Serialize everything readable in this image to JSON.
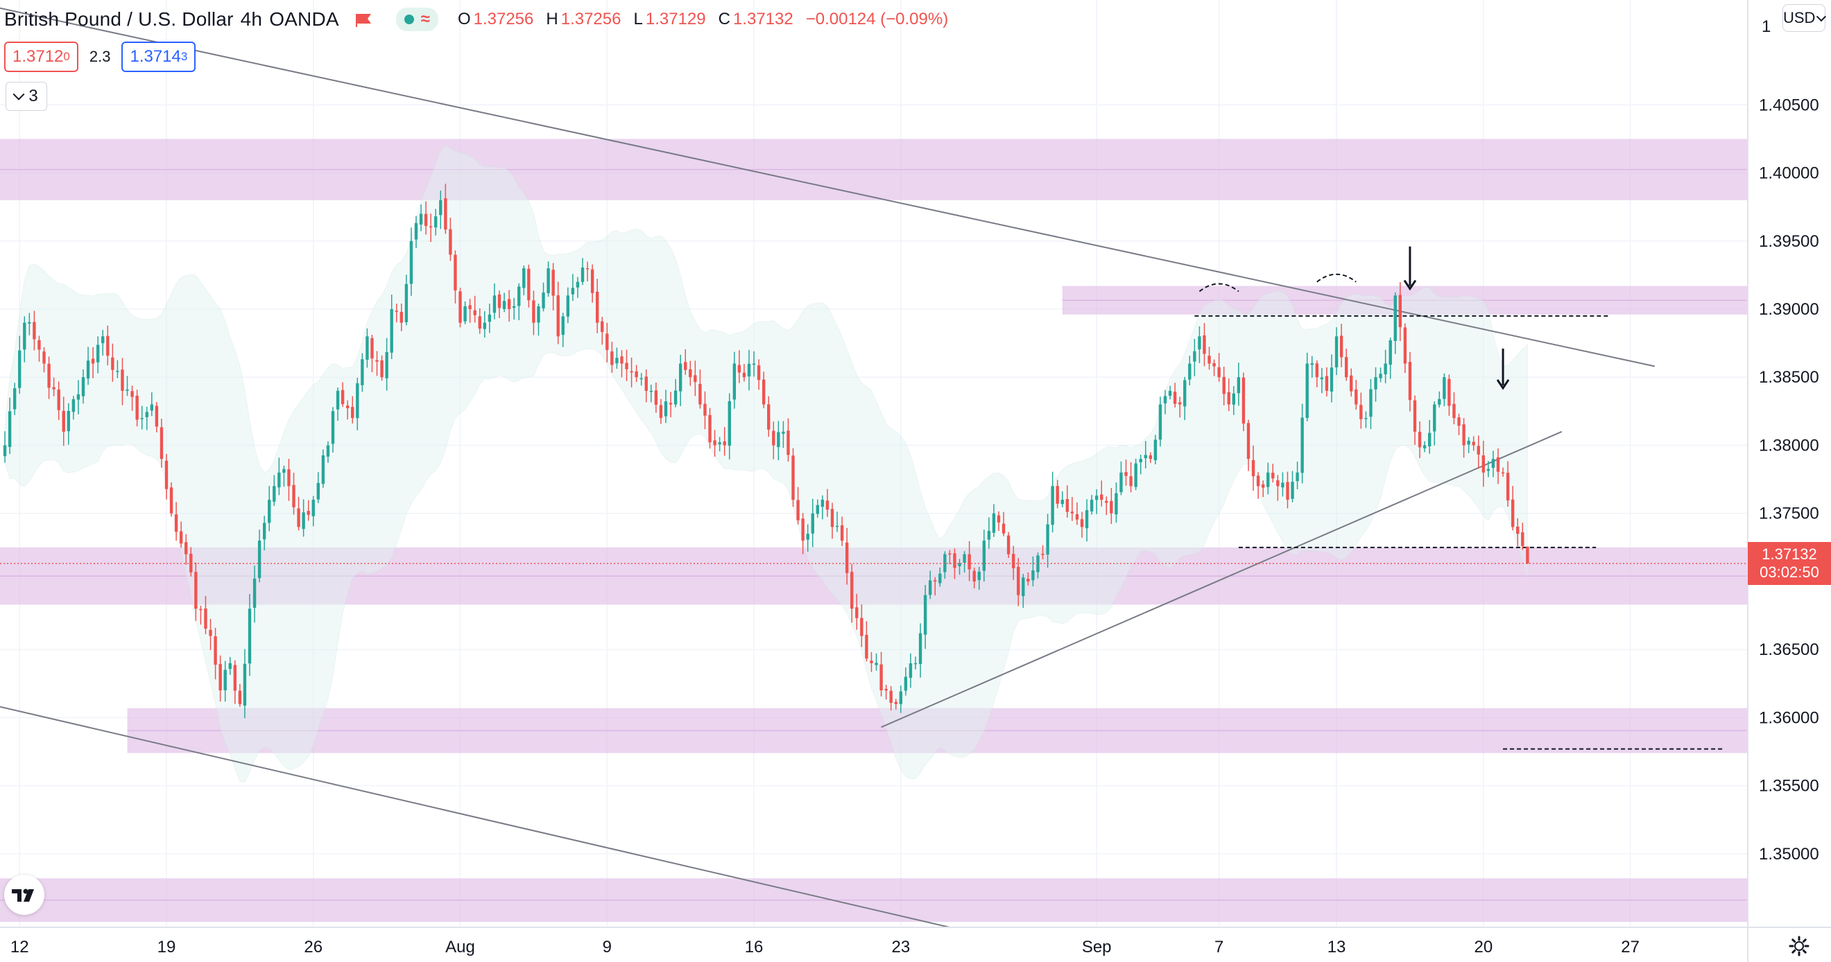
{
  "header": {
    "symbol": "British Pound / U.S. Dollar",
    "interval": "4h",
    "exchange": "OANDA",
    "ohlc": [
      {
        "key": "O",
        "value": "1.37256"
      },
      {
        "key": "H",
        "value": "1.37256"
      },
      {
        "key": "L",
        "value": "1.37129"
      },
      {
        "key": "C",
        "value": "1.37132"
      }
    ],
    "change": "−0.00124 (−0.09%)"
  },
  "quote": {
    "sell_main": "1.3712",
    "sell_sup": "0",
    "spread": "2.3",
    "buy_main": "1.3714",
    "buy_sup": "3"
  },
  "indicators": {
    "count": "3"
  },
  "price_scale": {
    "currency": "USD",
    "top_label": "1",
    "ticks": [
      "1.40500",
      "1.40000",
      "1.39500",
      "1.39000",
      "1.38500",
      "1.38000",
      "1.37500",
      "1.36500",
      "1.36000",
      "1.35500",
      "1.35000"
    ],
    "current_price": "1.37132",
    "countdown": "03:02:50"
  },
  "time_axis": {
    "labels": [
      "12",
      "19",
      "26",
      "Aug",
      "9",
      "16",
      "23",
      "Sep",
      "7",
      "13",
      "20",
      "27"
    ]
  },
  "colors": {
    "up": "#26a69a",
    "down": "#ef5350",
    "zone": "#e1bee7",
    "band": "#e0f2f1",
    "line": "#787b86",
    "current_price": "#ef5350"
  },
  "chart_data": {
    "type": "candlestick",
    "title": "",
    "xlabel": "",
    "ylabel": "",
    "ylim": [
      1.3446,
      1.4127
    ],
    "x_ticks": [
      {
        "label": "12",
        "i": 3
      },
      {
        "label": "19",
        "i": 33
      },
      {
        "label": "26",
        "i": 63
      },
      {
        "label": "Aug",
        "i": 93
      },
      {
        "label": "9",
        "i": 123
      },
      {
        "label": "16",
        "i": 153
      },
      {
        "label": "23",
        "i": 183
      },
      {
        "label": "Sep",
        "i": 223
      },
      {
        "label": "7",
        "i": 248
      },
      {
        "label": "13",
        "i": 272
      },
      {
        "label": "20",
        "i": 302
      },
      {
        "label": "27",
        "i": 332
      }
    ],
    "y_ticks": [
      1.405,
      1.4,
      1.395,
      1.39,
      1.385,
      1.38,
      1.375,
      1.365,
      1.36,
      1.355,
      1.35
    ],
    "anchors": [
      [
        0,
        1.38
      ],
      [
        4,
        1.389
      ],
      [
        8,
        1.386
      ],
      [
        12,
        1.381
      ],
      [
        16,
        1.385
      ],
      [
        20,
        1.388
      ],
      [
        24,
        1.384
      ],
      [
        28,
        1.382
      ],
      [
        30,
        1.383
      ],
      [
        32,
        1.379
      ],
      [
        34,
        1.375
      ],
      [
        37,
        1.372
      ],
      [
        39,
        1.368
      ],
      [
        42,
        1.366
      ],
      [
        44,
        1.362
      ],
      [
        46,
        1.364
      ],
      [
        48,
        1.361
      ],
      [
        50,
        1.368
      ],
      [
        52,
        1.373
      ],
      [
        54,
        1.376
      ],
      [
        56,
        1.378
      ],
      [
        58,
        1.377
      ],
      [
        60,
        1.374
      ],
      [
        63,
        1.376
      ],
      [
        66,
        1.38
      ],
      [
        68,
        1.384
      ],
      [
        71,
        1.382
      ],
      [
        74,
        1.388
      ],
      [
        77,
        1.385
      ],
      [
        79,
        1.39
      ],
      [
        81,
        1.389
      ],
      [
        83,
        1.395
      ],
      [
        85,
        1.397
      ],
      [
        87,
        1.396
      ],
      [
        89,
        1.398
      ],
      [
        91,
        1.394
      ],
      [
        93,
        1.389
      ],
      [
        95,
        1.39
      ],
      [
        98,
        1.389
      ],
      [
        100,
        1.391
      ],
      [
        103,
        1.39
      ],
      [
        106,
        1.393
      ],
      [
        108,
        1.389
      ],
      [
        111,
        1.393
      ],
      [
        113,
        1.388
      ],
      [
        115,
        1.391
      ],
      [
        117,
        1.392
      ],
      [
        119,
        1.393
      ],
      [
        121,
        1.389
      ],
      [
        123,
        1.387
      ],
      [
        126,
        1.386
      ],
      [
        129,
        1.385
      ],
      [
        132,
        1.384
      ],
      [
        134,
        1.382
      ],
      [
        136,
        1.383
      ],
      [
        138,
        1.386
      ],
      [
        140,
        1.385
      ],
      [
        142,
        1.383
      ],
      [
        145,
        1.38
      ],
      [
        147,
        1.38
      ],
      [
        149,
        1.386
      ],
      [
        151,
        1.385
      ],
      [
        153,
        1.386
      ],
      [
        155,
        1.383
      ],
      [
        157,
        1.38
      ],
      [
        159,
        1.381
      ],
      [
        161,
        1.376
      ],
      [
        163,
        1.373
      ],
      [
        165,
        1.375
      ],
      [
        167,
        1.376
      ],
      [
        169,
        1.374
      ],
      [
        171,
        1.373
      ],
      [
        173,
        1.368
      ],
      [
        175,
        1.366
      ],
      [
        177,
        1.364
      ],
      [
        180,
        1.362
      ],
      [
        182,
        1.361
      ],
      [
        184,
        1.363
      ],
      [
        186,
        1.364
      ],
      [
        188,
        1.369
      ],
      [
        190,
        1.37
      ],
      [
        192,
        1.372
      ],
      [
        194,
        1.371
      ],
      [
        196,
        1.372
      ],
      [
        198,
        1.37
      ],
      [
        200,
        1.373
      ],
      [
        202,
        1.375
      ],
      [
        205,
        1.372
      ],
      [
        207,
        1.369
      ],
      [
        209,
        1.37
      ],
      [
        212,
        1.372
      ],
      [
        214,
        1.377
      ],
      [
        216,
        1.376
      ],
      [
        218,
        1.375
      ],
      [
        220,
        1.374
      ],
      [
        222,
        1.376
      ],
      [
        224,
        1.376
      ],
      [
        226,
        1.375
      ],
      [
        228,
        1.378
      ],
      [
        230,
        1.377
      ],
      [
        232,
        1.379
      ],
      [
        234,
        1.379
      ],
      [
        236,
        1.383
      ],
      [
        238,
        1.384
      ],
      [
        240,
        1.383
      ],
      [
        242,
        1.386
      ],
      [
        244,
        1.388
      ],
      [
        246,
        1.386
      ],
      [
        248,
        1.385
      ],
      [
        250,
        1.383
      ],
      [
        252,
        1.385
      ],
      [
        254,
        1.379
      ],
      [
        256,
        1.377
      ],
      [
        258,
        1.378
      ],
      [
        260,
        1.377
      ],
      [
        262,
        1.376
      ],
      [
        264,
        1.378
      ],
      [
        266,
        1.386
      ],
      [
        268,
        1.385
      ],
      [
        270,
        1.384
      ],
      [
        272,
        1.388
      ],
      [
        274,
        1.385
      ],
      [
        276,
        1.383
      ],
      [
        278,
        1.382
      ],
      [
        280,
        1.385
      ],
      [
        282,
        1.386
      ],
      [
        284,
        1.391
      ],
      [
        286,
        1.386
      ],
      [
        288,
        1.381
      ],
      [
        290,
        1.38
      ],
      [
        292,
        1.383
      ],
      [
        294,
        1.385
      ],
      [
        296,
        1.382
      ],
      [
        298,
        1.38
      ],
      [
        300,
        1.38
      ],
      [
        302,
        1.378
      ],
      [
        304,
        1.379
      ],
      [
        306,
        1.378
      ],
      [
        308,
        1.374
      ],
      [
        309,
        1.3735
      ],
      [
        310,
        1.3726
      ],
      [
        311,
        1.37132
      ]
    ],
    "zones": [
      {
        "from": 1.398,
        "to": 1.4025
      },
      {
        "from": 1.3896,
        "to": 1.3917
      },
      {
        "from": 1.3683,
        "to": 1.3725
      },
      {
        "from": 1.3574,
        "to": 1.3607
      },
      {
        "from": 1.345,
        "to": 1.3482
      }
    ],
    "trendlines": [
      {
        "from": [
          -1,
          1.4121
        ],
        "to": [
          337,
          1.3858
        ]
      },
      {
        "from": [
          -1,
          1.3608
        ],
        "to": [
          193,
          1.3446
        ]
      },
      {
        "from": [
          179,
          1.3593
        ],
        "to": [
          318,
          1.381
        ]
      }
    ],
    "levels": [
      {
        "price": 1.3895,
        "from_i": 243,
        "to_i": 328
      },
      {
        "price": 1.3725,
        "from_i": 252,
        "to_i": 325
      },
      {
        "price": 1.3577,
        "from_i": 306,
        "to_i": 351
      }
    ],
    "arrows": [
      {
        "i": 287,
        "top": 1.3946,
        "bottom": 1.3915
      },
      {
        "i": 306,
        "top": 1.3871,
        "bottom": 1.3842
      }
    ],
    "current_price": 1.37132
  }
}
